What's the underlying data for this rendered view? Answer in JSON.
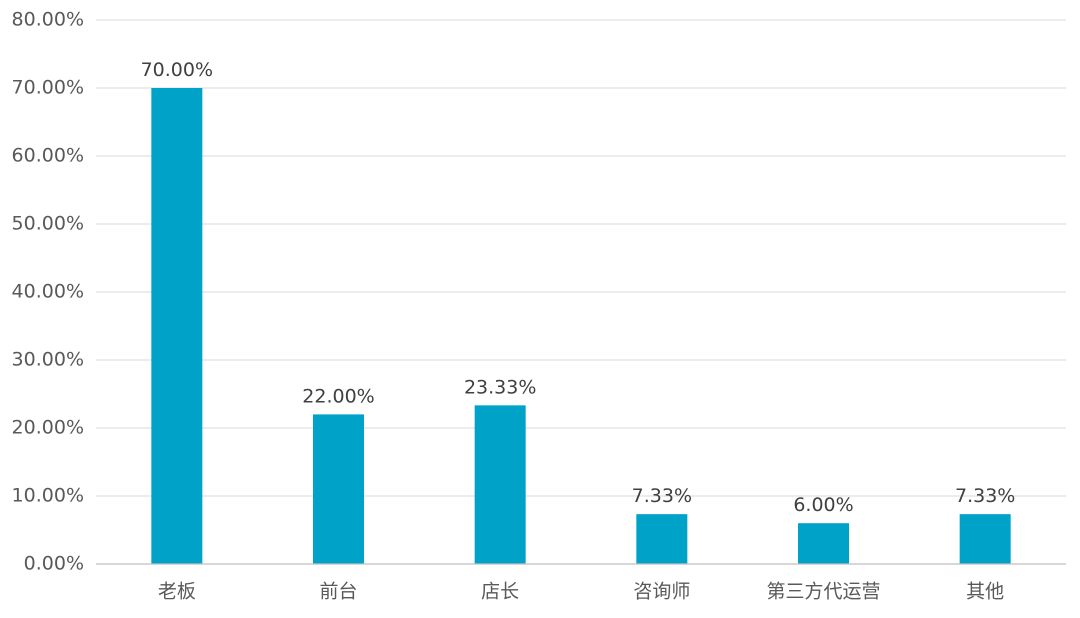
{
  "chart_data": {
    "type": "bar",
    "categories": [
      "老板",
      "前台",
      "店长",
      "咨询师",
      "第三方代运营",
      "其他"
    ],
    "values": [
      70.0,
      22.0,
      23.33,
      7.33,
      6.0,
      7.33
    ],
    "data_labels": [
      "70.00%",
      "22.00%",
      "23.33%",
      "7.33%",
      "6.00%",
      "7.33%"
    ],
    "y_ticks": [
      "0.00%",
      "10.00%",
      "20.00%",
      "30.00%",
      "40.00%",
      "50.00%",
      "60.00%",
      "70.00%",
      "80.00%"
    ],
    "ylim": [
      0,
      80
    ],
    "grid": true,
    "bar_color": "#00a2c8",
    "title": "",
    "xlabel": "",
    "ylabel": ""
  }
}
